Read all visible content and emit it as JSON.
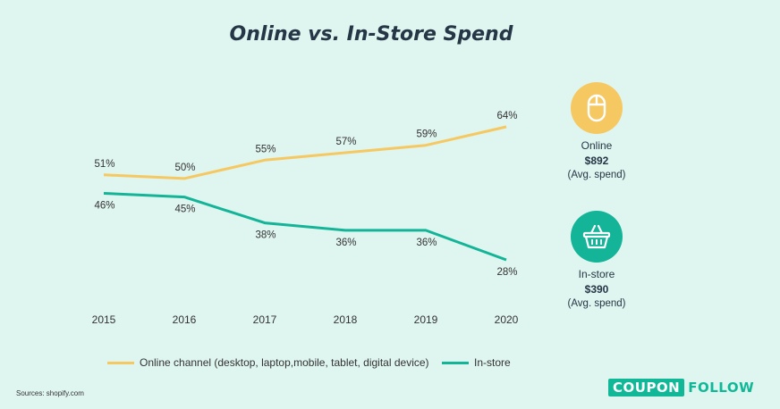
{
  "title": "Online vs. In-Store Spend",
  "chart_data": {
    "type": "line",
    "x": [
      "2015",
      "2016",
      "2017",
      "2018",
      "2019",
      "2020"
    ],
    "series": [
      {
        "name": "Online channel (desktop, laptop,mobile, tablet, digital device)",
        "values": [
          51,
          50,
          55,
          57,
          59,
          64
        ],
        "labels": [
          "51%",
          "50%",
          "55%",
          "57%",
          "59%",
          "64%"
        ],
        "color": "#f6c862"
      },
      {
        "name": "In-store",
        "values": [
          46,
          45,
          38,
          36,
          36,
          28
        ],
        "labels": [
          "46%",
          "45%",
          "38%",
          "36%",
          "36%",
          "28%"
        ],
        "color": "#13b497"
      }
    ],
    "legend_position": "bottom",
    "grid": false
  },
  "summary": {
    "online": {
      "label": "Online",
      "amount": "$892",
      "note": "(Avg. spend)",
      "icon": "mouse-icon",
      "color": "#f6c862"
    },
    "instore": {
      "label": "In-store",
      "amount": "$390",
      "note": "(Avg. spend)",
      "icon": "basket-icon",
      "color": "#13b497"
    }
  },
  "source": "Sources: shopify.com",
  "logo": {
    "box_text": "COUPON",
    "rest_text": "FOLLOW"
  }
}
